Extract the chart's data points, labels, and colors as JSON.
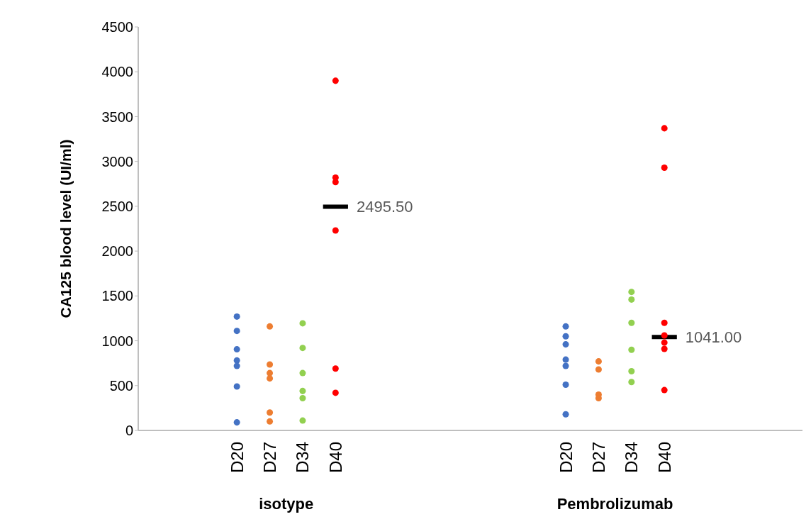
{
  "chart_data": {
    "type": "scatter",
    "ylabel": "CA125 blood level (UI/ml)",
    "categories": [
      "D20",
      "D27",
      "D34",
      "D40",
      null,
      null,
      null,
      null,
      null,
      null,
      "D20",
      "D27",
      "D34",
      "D40"
    ],
    "series": [
      {
        "colors": [
          "#4472c4",
          "#ed7d31",
          "#92d050",
          "#ff0000",
          null,
          null,
          null,
          null,
          null,
          null,
          "#4472c4",
          "#ed7d31",
          "#92d050",
          "#ff0000"
        ],
        "values": [
          1270,
          1160,
          1195,
          3900,
          null,
          null,
          null,
          null,
          null,
          null,
          1160,
          770,
          1545,
          3370
        ]
      },
      {
        "colors": [
          "#4472c4",
          "#ed7d31",
          "#92d050",
          "#ff0000",
          null,
          null,
          null,
          null,
          null,
          null,
          "#4472c4",
          "#ed7d31",
          "#92d050",
          "#ff0000"
        ],
        "values": [
          1110,
          735,
          920,
          2820,
          null,
          null,
          null,
          null,
          null,
          null,
          1050,
          680,
          1460,
          2930
        ]
      },
      {
        "colors": [
          "#4472c4",
          "#ed7d31",
          "#92d050",
          "#ff0000",
          null,
          null,
          null,
          null,
          null,
          null,
          "#4472c4",
          "#ed7d31",
          "#92d050",
          "#ff0000"
        ],
        "values": [
          905,
          640,
          640,
          2770,
          null,
          null,
          null,
          null,
          null,
          null,
          960,
          400,
          1200,
          1200
        ]
      },
      {
        "colors": [
          "#4472c4",
          "#ed7d31",
          "#92d050",
          "#ff0000",
          null,
          null,
          null,
          null,
          null,
          null,
          "#4472c4",
          "#ed7d31",
          "#92d050",
          "#ff0000"
        ],
        "values": [
          780,
          580,
          440,
          2230,
          null,
          null,
          null,
          null,
          null,
          null,
          790,
          360,
          900,
          1060
        ]
      },
      {
        "colors": [
          "#4472c4",
          "#ed7d31",
          "#92d050",
          "#ff0000",
          null,
          null,
          null,
          null,
          null,
          null,
          "#4472c4",
          null,
          "#92d050",
          "#ff0000"
        ],
        "values": [
          720,
          200,
          360,
          690,
          null,
          null,
          null,
          null,
          null,
          null,
          720,
          null,
          660,
          980
        ]
      },
      {
        "colors": [
          "#4472c4",
          "#ed7d31",
          "#92d050",
          "#ff0000",
          null,
          null,
          null,
          null,
          null,
          null,
          "#4472c4",
          null,
          "#92d050",
          "#ff0000"
        ],
        "values": [
          490,
          100,
          110,
          420,
          null,
          null,
          null,
          null,
          null,
          null,
          510,
          null,
          540,
          910
        ]
      },
      {
        "colors": [
          "#4472c4",
          null,
          null,
          null,
          null,
          null,
          null,
          null,
          null,
          null,
          "#4472c4",
          null,
          null,
          "#ff0000"
        ],
        "values": [
          90,
          null,
          null,
          null,
          null,
          null,
          null,
          null,
          null,
          null,
          180,
          null,
          null,
          450
        ]
      }
    ],
    "ref_lines": [
      {
        "axis": "y",
        "value": 2495.5,
        "label": "2495.50",
        "color": "#000000"
      },
      {
        "axis": "y",
        "value": 1041,
        "label": "1041.00",
        "color": "#000000"
      }
    ],
    "annotations": [
      "isotype",
      "Pembrolizumab"
    ],
    "ylim": [
      0,
      4500
    ],
    "yticks": [
      0,
      500,
      1000,
      1500,
      2000,
      2500,
      3000,
      3500,
      4000,
      4500
    ],
    "grid": false,
    "marker": "circle"
  }
}
